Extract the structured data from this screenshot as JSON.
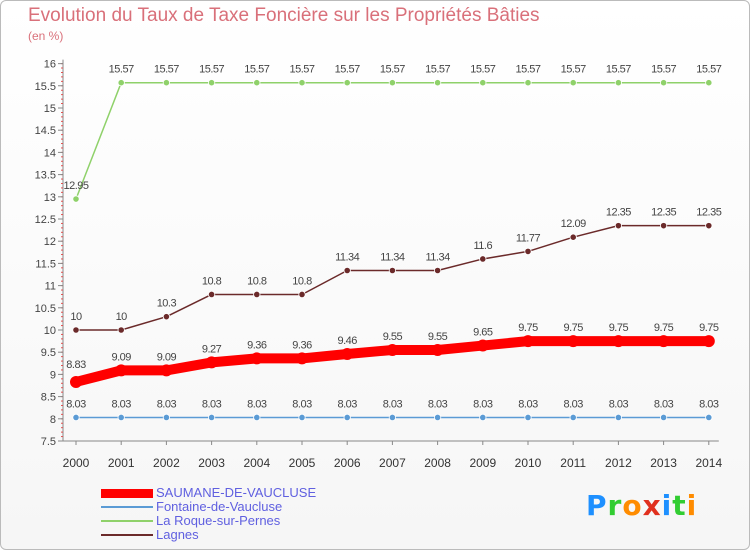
{
  "title": "Evolution du Taux de Taxe Foncière sur les Propriétés Bâties",
  "subtitle": "(en %)",
  "brand": {
    "text": "Proxiti",
    "colors": [
      "#1e90ff",
      "#32cd32",
      "#ff8c00",
      "#e0301e",
      "#1e90ff",
      "#32cd32",
      "#ff8c00"
    ]
  },
  "chart_data": {
    "type": "line",
    "ylim": [
      7.5,
      16
    ],
    "yticks": [
      "7.5",
      "8",
      "8.5",
      "9",
      "9.5",
      "10",
      "10.5",
      "11",
      "11.5",
      "12",
      "12.5",
      "13",
      "13.5",
      "14",
      "14.5",
      "15",
      "15.5",
      "16"
    ],
    "x": [
      "2000",
      "2001",
      "2002",
      "2003",
      "2004",
      "2005",
      "2006",
      "2007",
      "2008",
      "2009",
      "2010",
      "2011",
      "2012",
      "2013",
      "2014"
    ],
    "grid": false,
    "legend_position": "bottom-left",
    "series": [
      {
        "name": "SAUMANE-DE-VAUCLUSE",
        "color": "#ff0000",
        "width": 10,
        "values": [
          8.83,
          9.09,
          9.09,
          9.27,
          9.36,
          9.36,
          9.46,
          9.55,
          9.55,
          9.65,
          9.75,
          9.75,
          9.75,
          9.75,
          9.75
        ],
        "labels": [
          "8.83",
          "9.09",
          "9.09",
          "9.27",
          "9.36",
          "9.36",
          "9.46",
          "9.55",
          "9.55",
          "9.65",
          "9.75",
          "9.75",
          "9.75",
          "9.75",
          "9.75"
        ]
      },
      {
        "name": "Fontaine-de-Vaucluse",
        "color": "#5b9bd5",
        "width": 1.5,
        "values": [
          8.03,
          8.03,
          8.03,
          8.03,
          8.03,
          8.03,
          8.03,
          8.03,
          8.03,
          8.03,
          8.03,
          8.03,
          8.03,
          8.03,
          8.03
        ],
        "labels": [
          "8.03",
          "8.03",
          "8.03",
          "8.03",
          "8.03",
          "8.03",
          "8.03",
          "8.03",
          "8.03",
          "8.03",
          "8.03",
          "8.03",
          "8.03",
          "8.03",
          "8.03"
        ]
      },
      {
        "name": "La Roque-sur-Pernes",
        "color": "#8fd16a",
        "width": 1.5,
        "values": [
          12.95,
          15.57,
          15.57,
          15.57,
          15.57,
          15.57,
          15.57,
          15.57,
          15.57,
          15.57,
          15.57,
          15.57,
          15.57,
          15.57,
          15.57
        ],
        "labels": [
          "12.95",
          "15.57",
          "15.57",
          "15.57",
          "15.57",
          "15.57",
          "15.57",
          "15.57",
          "15.57",
          "15.57",
          "15.57",
          "15.57",
          "15.57",
          "15.57",
          "15.57"
        ]
      },
      {
        "name": "Lagnes",
        "color": "#6b2a2a",
        "width": 1.5,
        "values": [
          10,
          10,
          10.3,
          10.8,
          10.8,
          10.8,
          11.34,
          11.34,
          11.34,
          11.6,
          11.77,
          12.09,
          12.35,
          12.35,
          12.35
        ],
        "labels": [
          "10",
          "10",
          "10.3",
          "10.8",
          "10.8",
          "10.8",
          "11.34",
          "11.34",
          "11.34",
          "11.6",
          "11.77",
          "12.09",
          "12.35",
          "12.35",
          "12.35"
        ]
      }
    ]
  }
}
